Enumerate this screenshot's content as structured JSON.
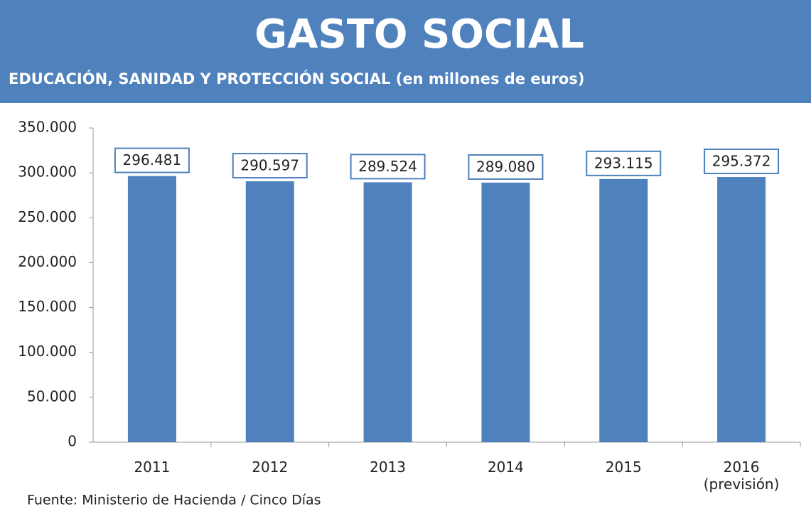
{
  "chart_data": {
    "type": "bar",
    "title": "GASTO SOCIAL",
    "subtitle": "EDUCACIÓN, SANIDAD Y PROTECCIÓN SOCIAL (en millones de euros)",
    "categories": [
      "2011",
      "2012",
      "2013",
      "2014",
      "2015",
      "2016 (previsión)"
    ],
    "values": [
      296481,
      290597,
      289524,
      289080,
      293115,
      295372
    ],
    "value_labels": [
      "296.481",
      "290.597",
      "289.524",
      "289.080",
      "293.115",
      "295.372"
    ],
    "color": "#4f81bd",
    "ylim": [
      0,
      350000
    ],
    "yticks": [
      0,
      {
        "value": 50000,
        "label": "50.000"
      },
      {
        "value": 100000,
        "label": "100.000"
      },
      {
        "value": 150000,
        "label": "150.000"
      },
      {
        "value": 200000,
        "label": "200.000"
      },
      {
        "value": 250000,
        "label": "250.000"
      },
      {
        "value": 300000,
        "label": "300.000"
      },
      {
        "value": 350000,
        "label": "350.000"
      }
    ],
    "grid": false,
    "source": "Fuente: Ministerio de Hacienda / Cinco Días"
  }
}
